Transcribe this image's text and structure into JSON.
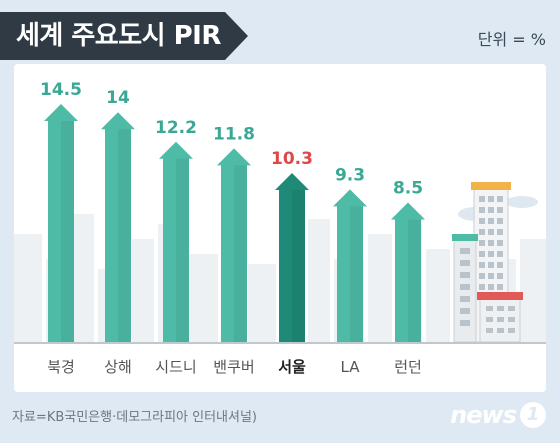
{
  "title": "세계 주요도시 PIR",
  "unit": "단위 = %",
  "source": "자료=KB국민은행·데모그라피아 인터내셔널)",
  "logo": {
    "text": "news",
    "badge": "1"
  },
  "colors": {
    "bar": "#4ebba7",
    "bar_highlight": "#1f8a78",
    "value": "#3aa894",
    "value_highlight": "#e04848",
    "label": "#555555",
    "label_highlight": "#222222"
  },
  "chart_data": {
    "type": "bar",
    "title": "세계 주요도시 PIR",
    "categories": [
      "북경",
      "상해",
      "시드니",
      "밴쿠버",
      "서울",
      "LA",
      "런던"
    ],
    "values": [
      14.5,
      14,
      12.2,
      11.8,
      10.3,
      9.3,
      8.5
    ],
    "value_labels": [
      "14.5",
      "14",
      "12.2",
      "11.8",
      "10.3",
      "9.3",
      "8.5"
    ],
    "highlight": "서울",
    "unit": "%",
    "grid": false,
    "legend": "none"
  }
}
